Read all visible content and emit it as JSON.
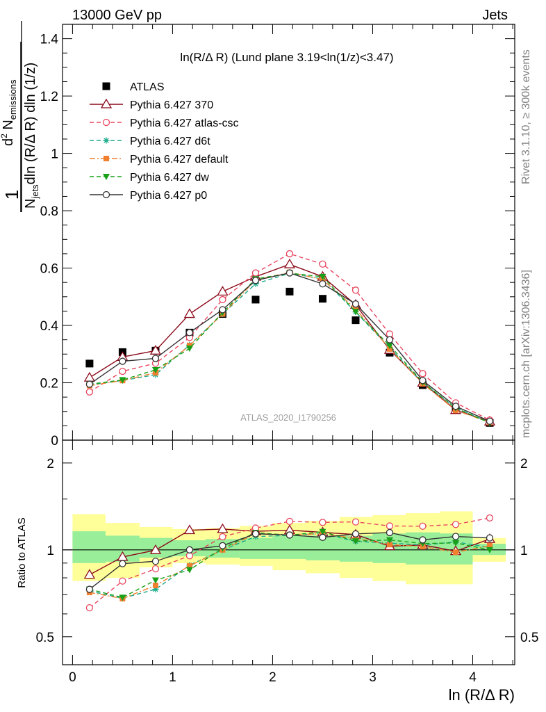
{
  "header": {
    "left": "13000 GeV pp",
    "right": "Jets"
  },
  "watermarks": {
    "rivet": "Rivet 3.1.10, ≥ 300k events",
    "mcplots": "mcplots.cern.ch [arXiv:1306.3436]",
    "analysis": "ATLAS_2020_I1790256"
  },
  "main_title": "ln(R/Δ R) (Lund plane 3.19<ln(1/z)<3.47)",
  "ylabel_main": "1/N_jets dln (R/Δ R) dln (1/z) d² N_emissions",
  "ylabel_ratio": "Ratio to ATLAS",
  "xlabel": "ln (R/Δ R)",
  "chart_data": [
    {
      "type": "line",
      "panel": "main",
      "title": "ln(R/Δ R) (Lund plane 3.19<ln(1/z)<3.47)",
      "xlabel": "ln (R/Δ R)",
      "ylabel": "1/N_jets dln (R/Δ R) dln (1/z) d² N_emissions",
      "xlim": [
        -0.1,
        4.42
      ],
      "ylim": [
        0,
        1.45
      ],
      "yticks": [
        "0",
        "0.2",
        "0.4",
        "0.6",
        "0.8",
        "1",
        "1.2",
        "1.4"
      ],
      "xticks": [
        "0",
        "1",
        "2",
        "3",
        "4"
      ],
      "x": [
        0.17,
        0.5,
        0.83,
        1.17,
        1.5,
        1.83,
        2.17,
        2.5,
        2.83,
        3.17,
        3.5,
        3.83,
        4.17
      ],
      "legend_position": "top-left",
      "series": [
        {
          "name": "ATLAS",
          "color": "#000000",
          "marker": "square",
          "line": "none",
          "values": [
            0.267,
            0.307,
            0.312,
            0.375,
            0.44,
            0.49,
            0.518,
            0.493,
            0.418,
            0.305,
            0.192,
            0.106,
            0.06
          ]
        },
        {
          "name": "Pythia 6.427 370",
          "color": "#8b0a1a",
          "marker": "triangle-open",
          "line": "solid",
          "values": [
            0.218,
            0.29,
            0.312,
            0.44,
            0.518,
            0.57,
            0.613,
            0.57,
            0.472,
            0.315,
            0.2,
            0.105,
            0.065
          ]
        },
        {
          "name": "Pythia 6.427 atlas-csc",
          "color": "#e8455f",
          "marker": "circle-open",
          "line": "dashed",
          "values": [
            0.168,
            0.24,
            0.268,
            0.358,
            0.49,
            0.583,
            0.65,
            0.614,
            0.523,
            0.37,
            0.232,
            0.13,
            0.07
          ]
        },
        {
          "name": "Pythia 6.427 d6t",
          "color": "#1aaa88",
          "marker": "star",
          "line": "dashed",
          "values": [
            0.192,
            0.208,
            0.228,
            0.332,
            0.44,
            0.545,
            0.582,
            0.562,
            0.447,
            0.322,
            0.2,
            0.113,
            0.061
          ]
        },
        {
          "name": "Pythia 6.427 default",
          "color": "#f08030",
          "marker": "square-small",
          "line": "dashdot",
          "values": [
            0.19,
            0.208,
            0.235,
            0.33,
            0.44,
            0.558,
            0.585,
            0.56,
            0.458,
            0.318,
            0.197,
            0.104,
            0.062
          ]
        },
        {
          "name": "Pythia 6.427 dw",
          "color": "#18a018",
          "marker": "triangle-down",
          "line": "dashed",
          "values": [
            0.195,
            0.21,
            0.245,
            0.32,
            0.445,
            0.562,
            0.582,
            0.57,
            0.448,
            0.33,
            0.202,
            0.112,
            0.06
          ]
        },
        {
          "name": "Pythia 6.427 p0",
          "color": "#333333",
          "marker": "circle-open",
          "line": "solid",
          "values": [
            0.195,
            0.275,
            0.285,
            0.375,
            0.455,
            0.557,
            0.583,
            0.545,
            0.475,
            0.35,
            0.208,
            0.118,
            0.066
          ]
        }
      ]
    },
    {
      "type": "line",
      "panel": "ratio",
      "ylabel": "Ratio to ATLAS",
      "xlabel": "ln (R/Δ R)",
      "xlim": [
        -0.1,
        4.42
      ],
      "ylim": [
        0.4,
        2.4
      ],
      "yscale": "log",
      "yticks": [
        "0.5",
        "1",
        "2"
      ],
      "xticks": [
        "0",
        "1",
        "2",
        "3",
        "4"
      ],
      "reference_line": 1,
      "bands": {
        "x_edges": [
          0,
          0.33,
          0.67,
          1.0,
          1.33,
          1.67,
          2.0,
          2.33,
          2.67,
          3.0,
          3.33,
          3.67,
          4.0,
          4.33
        ],
        "yellow": [
          [
            0.78,
            1.33
          ],
          [
            0.8,
            1.24
          ],
          [
            0.87,
            1.2
          ],
          [
            0.9,
            1.18
          ],
          [
            0.89,
            1.19
          ],
          [
            0.88,
            1.21
          ],
          [
            0.85,
            1.24
          ],
          [
            0.83,
            1.26
          ],
          [
            0.8,
            1.3
          ],
          [
            0.78,
            1.32
          ],
          [
            0.76,
            1.34
          ],
          [
            0.76,
            1.36
          ],
          [
            0.91,
            1.1
          ]
        ],
        "green": [
          [
            0.9,
            1.16
          ],
          [
            0.91,
            1.12
          ],
          [
            0.94,
            1.1
          ],
          [
            0.95,
            1.08
          ],
          [
            0.94,
            1.09
          ],
          [
            0.93,
            1.1
          ],
          [
            0.93,
            1.12
          ],
          [
            0.92,
            1.12
          ],
          [
            0.91,
            1.12
          ],
          [
            0.9,
            1.14
          ],
          [
            0.89,
            1.15
          ],
          [
            0.89,
            1.14
          ],
          [
            0.96,
            1.05
          ]
        ]
      },
      "x": [
        0.17,
        0.5,
        0.83,
        1.17,
        1.5,
        1.83,
        2.17,
        2.5,
        2.83,
        3.17,
        3.5,
        3.83,
        4.17
      ],
      "series": [
        {
          "name": "Pythia 6.427 370",
          "color": "#8b0a1a",
          "marker": "triangle-open",
          "line": "solid",
          "values": [
            0.82,
            0.945,
            0.998,
            1.17,
            1.18,
            1.16,
            1.17,
            1.15,
            1.13,
            1.03,
            1.04,
            0.99,
            1.09
          ]
        },
        {
          "name": "Pythia 6.427 atlas-csc",
          "color": "#e8455f",
          "marker": "circle-open",
          "line": "dashed",
          "values": [
            0.63,
            0.78,
            0.86,
            0.954,
            1.11,
            1.19,
            1.255,
            1.245,
            1.25,
            1.21,
            1.208,
            1.225,
            1.29
          ]
        },
        {
          "name": "Pythia 6.427 d6t",
          "color": "#1aaa88",
          "marker": "star",
          "line": "dashed",
          "values": [
            0.72,
            0.68,
            0.73,
            0.885,
            1.0,
            1.112,
            1.123,
            1.14,
            1.07,
            1.055,
            1.04,
            1.065,
            1.02
          ]
        },
        {
          "name": "Pythia 6.427 default",
          "color": "#f08030",
          "marker": "square-small",
          "line": "dashdot",
          "values": [
            0.712,
            0.678,
            0.753,
            0.88,
            1.0,
            1.138,
            1.13,
            1.136,
            1.096,
            1.043,
            1.026,
            0.981,
            1.033
          ]
        },
        {
          "name": "Pythia 6.427 dw",
          "color": "#18a018",
          "marker": "triangle-down",
          "line": "dashed",
          "values": [
            0.73,
            0.684,
            0.785,
            0.853,
            1.012,
            1.147,
            1.124,
            1.156,
            1.072,
            1.082,
            1.052,
            1.057,
            1.0
          ]
        },
        {
          "name": "Pythia 6.427 p0",
          "color": "#333333",
          "marker": "circle-open",
          "line": "solid",
          "values": [
            0.73,
            0.896,
            0.913,
            1.0,
            1.034,
            1.137,
            1.126,
            1.105,
            1.136,
            1.148,
            1.083,
            1.113,
            1.1
          ]
        }
      ]
    }
  ]
}
